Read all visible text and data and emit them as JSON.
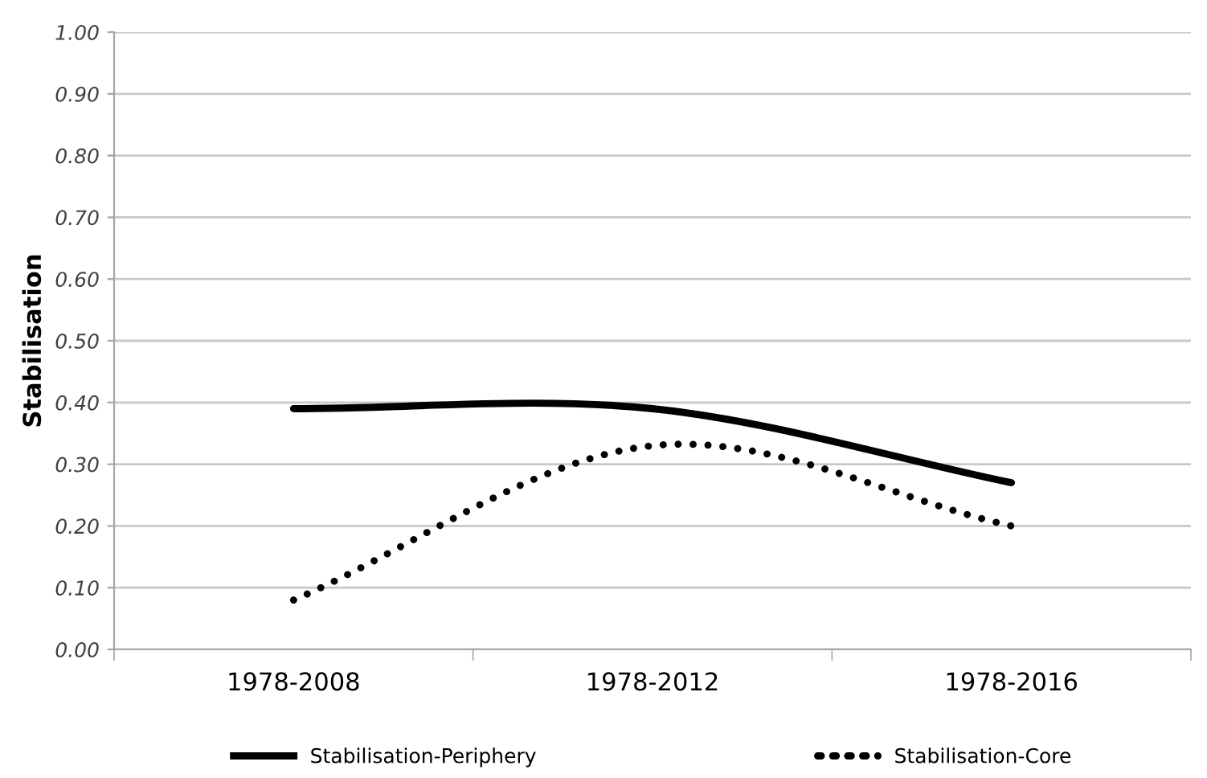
{
  "chart_data": {
    "type": "line",
    "ylabel": "Stabilisation",
    "categories": [
      "1978-2008",
      "1978-2012",
      "1978-2016"
    ],
    "series": [
      {
        "name": "Stabilisation-Periphery",
        "color": "#000000",
        "values": [
          0.39,
          0.39,
          0.27
        ],
        "line_style": "solid"
      },
      {
        "name": "Stabilisation-Core",
        "color": "#000000",
        "values": [
          0.08,
          0.33,
          0.2
        ],
        "line_style": "dotted"
      }
    ],
    "ylim": [
      0,
      1
    ],
    "yticks": [
      {
        "value": 0,
        "label": "0.00"
      },
      {
        "value": 0.1,
        "label": "0.10"
      },
      {
        "value": 0.2,
        "label": "0.20"
      },
      {
        "value": 0.3,
        "label": "0.30"
      },
      {
        "value": 0.4,
        "label": "0.40"
      },
      {
        "value": 0.5,
        "label": "0.50"
      },
      {
        "value": 0.6,
        "label": "0.60"
      },
      {
        "value": 0.7,
        "label": "0.70"
      },
      {
        "value": 0.8,
        "label": "0.80"
      },
      {
        "value": 0.9,
        "label": "0.90"
      },
      {
        "value": 1,
        "label": "1.00"
      }
    ],
    "grid": "y",
    "legend": "bottom",
    "marker": "none"
  }
}
